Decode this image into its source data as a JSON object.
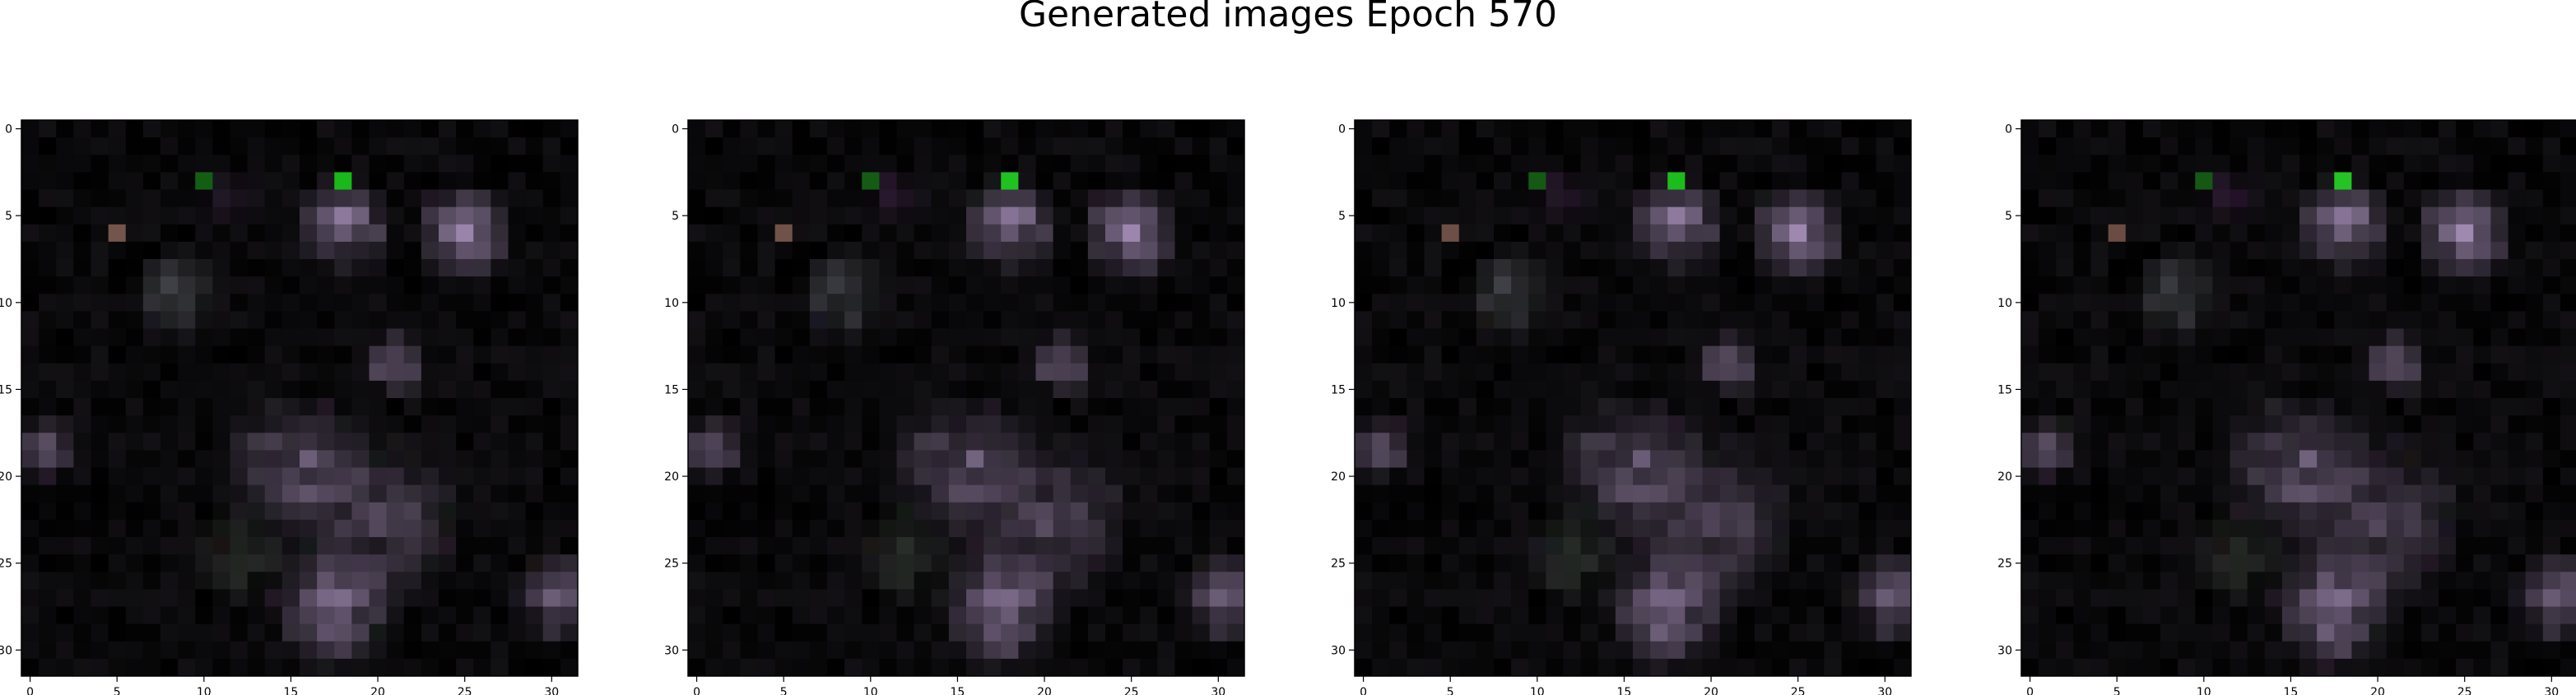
{
  "figure": {
    "title": "Generated images Epoch 570"
  },
  "chart_data": [
    {
      "type": "heatmap",
      "description_of_content": "32x32 RGB generated image (mostly dark with purple/gray blobs, one bright green pixel near top center)",
      "x_ticks": [
        "0",
        "5",
        "10",
        "15",
        "20",
        "25",
        "30"
      ],
      "y_ticks": [
        "0",
        "5",
        "10",
        "15",
        "20",
        "25",
        "30"
      ],
      "xlim": [
        -0.5,
        31.5
      ],
      "ylim": [
        31.5,
        -0.5
      ],
      "grid": false
    },
    {
      "type": "heatmap",
      "x_ticks": [
        "0",
        "5",
        "10",
        "15",
        "20",
        "25",
        "30"
      ],
      "y_ticks": [
        "0",
        "5",
        "10",
        "15",
        "20",
        "25",
        "30"
      ],
      "xlim": [
        -0.5,
        31.5
      ],
      "ylim": [
        31.5,
        -0.5
      ],
      "grid": false
    },
    {
      "type": "heatmap",
      "x_ticks": [
        "0",
        "5",
        "10",
        "15",
        "20",
        "25",
        "30"
      ],
      "y_ticks": [
        "0",
        "5",
        "10",
        "15",
        "20",
        "25",
        "30"
      ],
      "xlim": [
        -0.5,
        31.5
      ],
      "ylim": [
        31.5,
        -0.5
      ],
      "grid": false
    },
    {
      "type": "heatmap",
      "x_ticks": [
        "0",
        "5",
        "10",
        "15",
        "20",
        "25",
        "30"
      ],
      "y_ticks": [
        "0",
        "5",
        "10",
        "15",
        "20",
        "25",
        "30"
      ],
      "xlim": [
        -0.5,
        31.5
      ],
      "ylim": [
        31.5,
        -0.5
      ],
      "grid": false
    }
  ],
  "colors": {
    "background": "#000000",
    "accent_green": "#22c020",
    "blob_purple": "#8a7a95"
  }
}
